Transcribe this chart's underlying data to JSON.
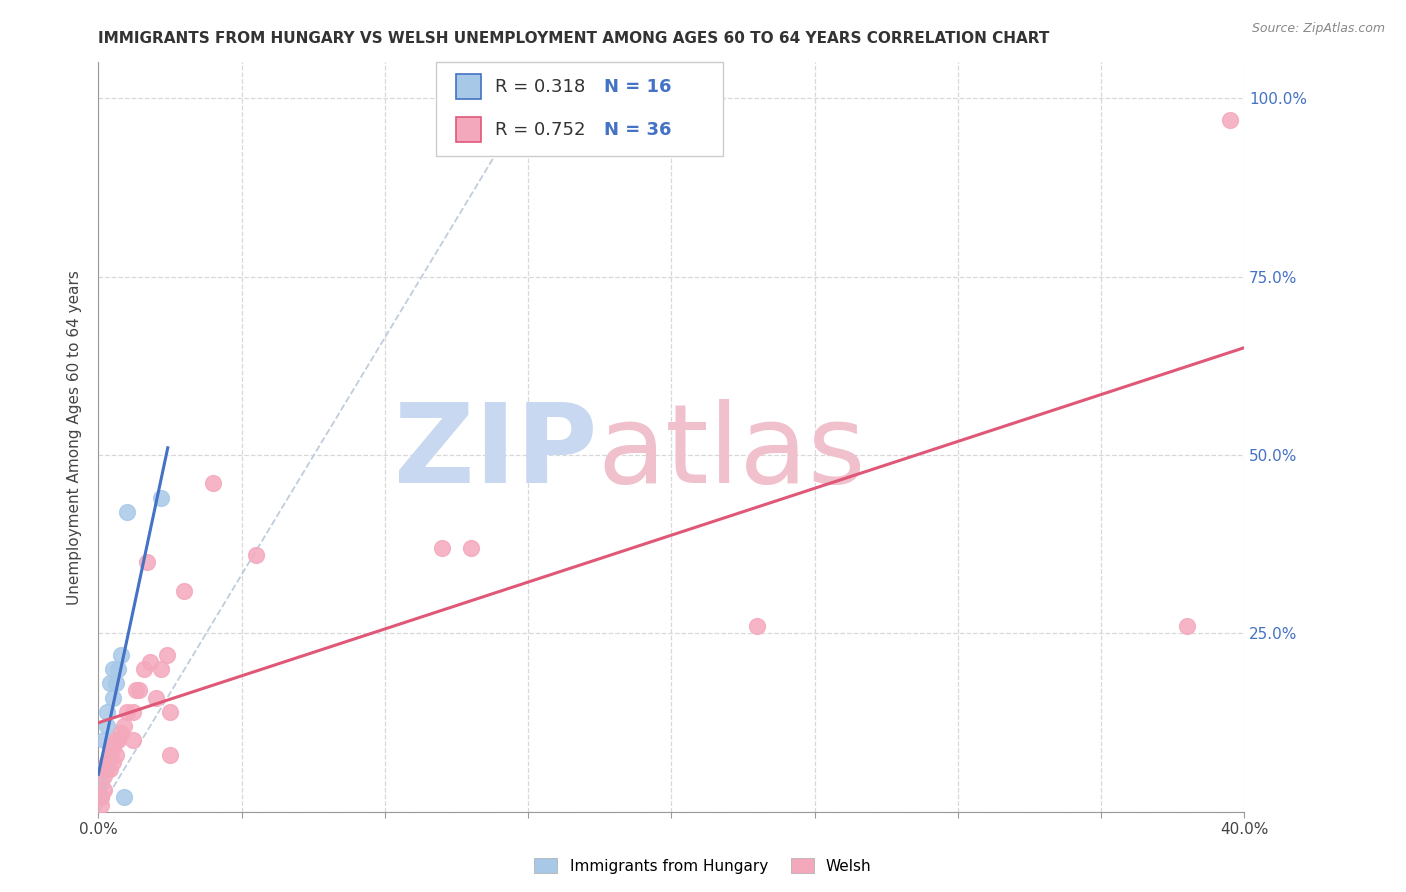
{
  "title": "IMMIGRANTS FROM HUNGARY VS WELSH UNEMPLOYMENT AMONG AGES 60 TO 64 YEARS CORRELATION CHART",
  "source": "Source: ZipAtlas.com",
  "ylabel": "Unemployment Among Ages 60 to 64 years",
  "xlim": [
    0,
    0.4
  ],
  "ylim": [
    0,
    1.05
  ],
  "xticks": [
    0.0,
    0.05,
    0.1,
    0.15,
    0.2,
    0.25,
    0.3,
    0.35,
    0.4
  ],
  "xticklabels": [
    "0.0%",
    "",
    "",
    "",
    "",
    "",
    "",
    "",
    "40.0%"
  ],
  "yticks": [
    0.0,
    0.25,
    0.5,
    0.75,
    1.0
  ],
  "yticklabels": [
    "",
    "25.0%",
    "50.0%",
    "75.0%",
    "100.0%"
  ],
  "legend_r1": "R = 0.318",
  "legend_n1": "N = 16",
  "legend_r2": "R = 0.752",
  "legend_n2": "N = 36",
  "series1_label": "Immigrants from Hungary",
  "series2_label": "Welsh",
  "color1": "#a8c8e8",
  "color2": "#f4a8bc",
  "line1_color": "#4472c4",
  "line2_color": "#e05878",
  "diag_color": "#b8c8d8",
  "watermark_zip_color": "#c8d8f0",
  "watermark_atlas_color": "#f0c0cc",
  "background": "#ffffff",
  "grid_color": "#d8d8d8",
  "blue_x": [
    0.001,
    0.001,
    0.002,
    0.002,
    0.003,
    0.003,
    0.004,
    0.004,
    0.005,
    0.005,
    0.006,
    0.007,
    0.008,
    0.009,
    0.01,
    0.022
  ],
  "blue_y": [
    0.02,
    0.04,
    0.06,
    0.1,
    0.12,
    0.14,
    0.08,
    0.18,
    0.16,
    0.2,
    0.18,
    0.2,
    0.22,
    0.02,
    0.42,
    0.44
  ],
  "pink_x": [
    0.001,
    0.001,
    0.002,
    0.002,
    0.003,
    0.003,
    0.004,
    0.004,
    0.005,
    0.005,
    0.006,
    0.006,
    0.007,
    0.008,
    0.009,
    0.01,
    0.012,
    0.012,
    0.013,
    0.014,
    0.016,
    0.017,
    0.018,
    0.02,
    0.022,
    0.024,
    0.025,
    0.025,
    0.03,
    0.04,
    0.055,
    0.12,
    0.13,
    0.23,
    0.38,
    0.395
  ],
  "pink_y": [
    0.01,
    0.02,
    0.03,
    0.05,
    0.06,
    0.07,
    0.06,
    0.08,
    0.07,
    0.09,
    0.08,
    0.1,
    0.1,
    0.11,
    0.12,
    0.14,
    0.1,
    0.14,
    0.17,
    0.17,
    0.2,
    0.35,
    0.21,
    0.16,
    0.2,
    0.22,
    0.08,
    0.14,
    0.31,
    0.46,
    0.36,
    0.37,
    0.37,
    0.26,
    0.26,
    0.97
  ],
  "title_fontsize": 11,
  "axis_label_fontsize": 11,
  "tick_fontsize": 11,
  "legend_fontsize": 13
}
